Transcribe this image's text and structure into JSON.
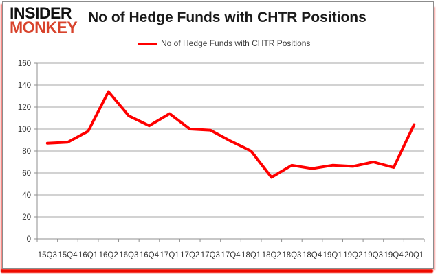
{
  "logo": {
    "line1": "INSIDER",
    "line2": "MONKEY"
  },
  "header": {
    "title": "No of Hedge Funds with CHTR Positions"
  },
  "legend": {
    "label": "No of Hedge Funds with CHTR Positions"
  },
  "colors": {
    "line": "#ff0000",
    "logo_red": "#d8432c",
    "gridline": "#a6a6a6",
    "axis": "#8f8f8f",
    "tick_text": "#333333"
  },
  "chart_data": {
    "type": "line",
    "title": "No of Hedge Funds with CHTR Positions",
    "categories": [
      "15Q3",
      "15Q4",
      "16Q1",
      "16Q2",
      "16Q3",
      "16Q4",
      "17Q1",
      "17Q2",
      "17Q3",
      "17Q4",
      "18Q1",
      "18Q2",
      "18Q3",
      "18Q4",
      "19Q1",
      "19Q2",
      "19Q3",
      "19Q4",
      "20Q1"
    ],
    "series": [
      {
        "name": "No of Hedge Funds with CHTR Positions",
        "values": [
          87,
          88,
          98,
          134,
          112,
          103,
          114,
          100,
          99,
          89,
          80,
          56,
          67,
          64,
          67,
          66,
          70,
          65,
          104
        ]
      }
    ],
    "xlabel": "",
    "ylabel": "",
    "ylim": [
      0,
      160
    ],
    "ytick_step": 20,
    "grid": true,
    "legend_position": "top",
    "line_color": "#ff0000"
  }
}
